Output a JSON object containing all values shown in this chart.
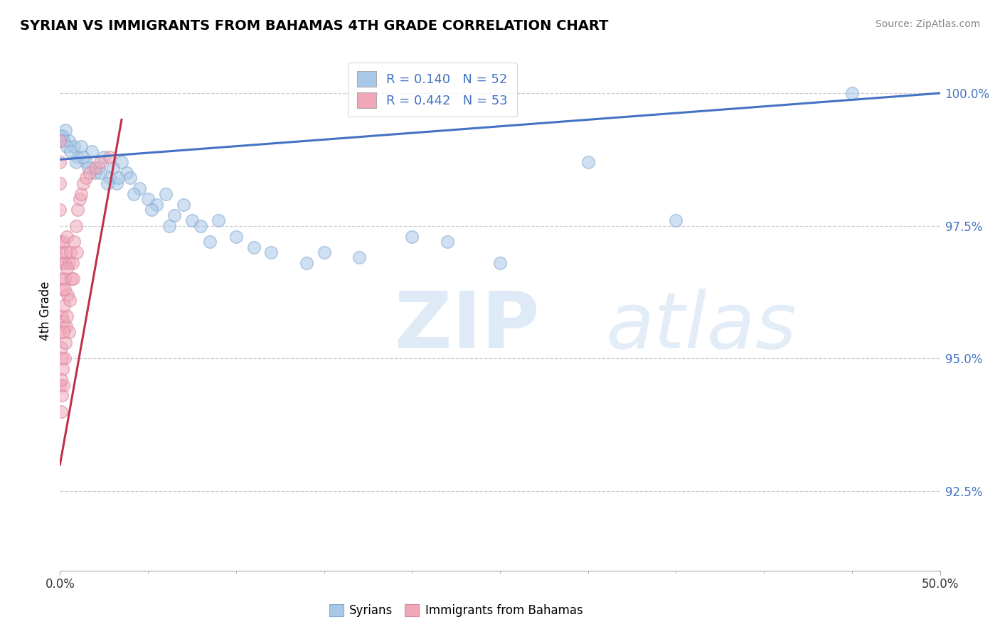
{
  "title": "SYRIAN VS IMMIGRANTS FROM BAHAMAS 4TH GRADE CORRELATION CHART",
  "source_text": "Source: ZipAtlas.com",
  "ylabel": "4th Grade",
  "blue_R": 0.14,
  "blue_N": 52,
  "pink_R": 0.442,
  "pink_N": 53,
  "blue_color": "#a8c8e8",
  "pink_color": "#f0a8b8",
  "line_blue": "#4472c4",
  "line_pink": "#c0304a",
  "yticks": [
    92.5,
    95.0,
    97.5,
    100.0
  ],
  "xlim": [
    0,
    50
  ],
  "ylim": [
    91.0,
    100.8
  ],
  "blue_line_x0": 0.0,
  "blue_line_y0": 98.75,
  "blue_line_x1": 50.0,
  "blue_line_y1": 100.0,
  "pink_line_x0": 0.0,
  "pink_line_y0": 93.0,
  "pink_line_x1": 3.5,
  "pink_line_y1": 99.5,
  "blue_scatter_x": [
    0.0,
    0.3,
    0.5,
    0.8,
    1.0,
    1.2,
    1.5,
    1.8,
    2.0,
    2.2,
    2.5,
    2.8,
    3.0,
    3.2,
    3.5,
    3.8,
    4.0,
    4.5,
    5.0,
    5.5,
    6.0,
    6.5,
    7.0,
    7.5,
    8.0,
    9.0,
    10.0,
    12.0,
    14.0,
    17.0,
    22.0,
    25.0,
    30.0,
    0.1,
    0.2,
    0.4,
    0.6,
    0.9,
    1.3,
    1.6,
    2.3,
    2.7,
    3.3,
    4.2,
    5.2,
    6.2,
    8.5,
    11.0,
    15.0,
    20.0,
    35.0,
    45.0
  ],
  "blue_scatter_y": [
    99.2,
    99.3,
    99.1,
    99.0,
    98.8,
    99.0,
    98.7,
    98.9,
    98.5,
    98.6,
    98.8,
    98.4,
    98.6,
    98.3,
    98.7,
    98.5,
    98.4,
    98.2,
    98.0,
    97.9,
    98.1,
    97.7,
    97.9,
    97.6,
    97.5,
    97.6,
    97.3,
    97.0,
    96.8,
    96.9,
    97.2,
    96.8,
    98.7,
    99.2,
    99.1,
    99.0,
    98.9,
    98.7,
    98.8,
    98.6,
    98.5,
    98.3,
    98.4,
    98.1,
    97.8,
    97.5,
    97.2,
    97.1,
    97.0,
    97.3,
    97.6,
    100.0
  ],
  "pink_scatter_x": [
    0.0,
    0.0,
    0.0,
    0.0,
    0.0,
    0.0,
    0.0,
    0.0,
    0.05,
    0.05,
    0.05,
    0.1,
    0.1,
    0.1,
    0.15,
    0.15,
    0.2,
    0.2,
    0.2,
    0.25,
    0.25,
    0.3,
    0.3,
    0.35,
    0.35,
    0.4,
    0.4,
    0.45,
    0.5,
    0.5,
    0.6,
    0.65,
    0.7,
    0.8,
    0.9,
    1.0,
    1.1,
    1.2,
    1.3,
    1.5,
    1.7,
    2.0,
    2.3,
    2.8,
    0.08,
    0.12,
    0.18,
    0.22,
    0.28,
    0.38,
    0.55,
    0.75,
    0.95
  ],
  "pink_scatter_y": [
    94.5,
    95.5,
    96.5,
    97.2,
    97.8,
    98.3,
    98.7,
    99.1,
    94.0,
    95.2,
    96.8,
    94.3,
    95.8,
    97.0,
    94.8,
    96.3,
    94.5,
    95.7,
    97.2,
    95.0,
    96.5,
    95.3,
    96.8,
    95.6,
    97.0,
    95.8,
    97.3,
    96.2,
    95.5,
    96.8,
    97.0,
    96.5,
    96.8,
    97.2,
    97.5,
    97.8,
    98.0,
    98.1,
    98.3,
    98.4,
    98.5,
    98.6,
    98.7,
    98.8,
    94.6,
    95.0,
    95.5,
    96.0,
    96.3,
    96.7,
    96.1,
    96.5,
    97.0
  ],
  "watermark_zip": "ZIP",
  "watermark_atlas": "atlas"
}
